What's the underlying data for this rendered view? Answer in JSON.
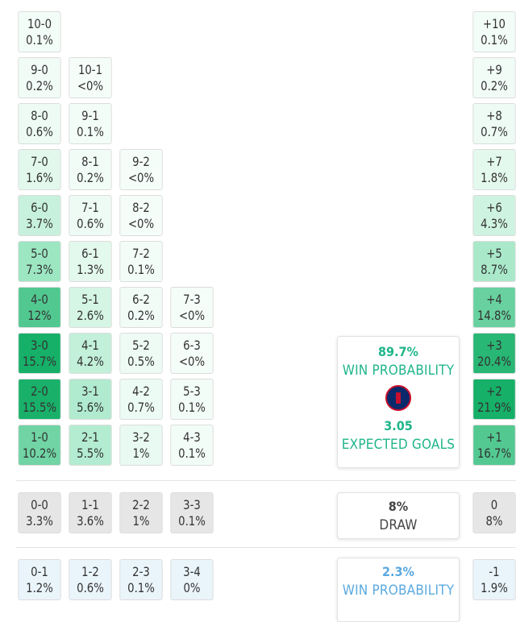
{
  "colors": {
    "win_accent": "#1fb58a",
    "loss_accent": "#5aa9e0",
    "draw_bg": "#e6e6e6"
  },
  "home_win_rows": [
    [
      {
        "score": "10-0",
        "prob": "0.1%",
        "shade": 0.01
      }
    ],
    [
      {
        "score": "9-0",
        "prob": "0.2%",
        "shade": 0.02
      },
      {
        "score": "10-1",
        "prob": "<0%",
        "shade": 0
      }
    ],
    [
      {
        "score": "8-0",
        "prob": "0.6%",
        "shade": 0.04
      },
      {
        "score": "9-1",
        "prob": "0.1%",
        "shade": 0.01
      }
    ],
    [
      {
        "score": "7-0",
        "prob": "1.6%",
        "shade": 0.1
      },
      {
        "score": "8-1",
        "prob": "0.2%",
        "shade": 0.02
      },
      {
        "score": "9-2",
        "prob": "<0%",
        "shade": 0
      }
    ],
    [
      {
        "score": "6-0",
        "prob": "3.7%",
        "shade": 0.24
      },
      {
        "score": "7-1",
        "prob": "0.6%",
        "shade": 0.04
      },
      {
        "score": "8-2",
        "prob": "<0%",
        "shade": 0
      }
    ],
    [
      {
        "score": "5-0",
        "prob": "7.3%",
        "shade": 0.47
      },
      {
        "score": "6-1",
        "prob": "1.3%",
        "shade": 0.09
      },
      {
        "score": "7-2",
        "prob": "0.1%",
        "shade": 0.01
      }
    ],
    [
      {
        "score": "4-0",
        "prob": "12%",
        "shade": 0.77
      },
      {
        "score": "5-1",
        "prob": "2.6%",
        "shade": 0.17
      },
      {
        "score": "6-2",
        "prob": "0.2%",
        "shade": 0.02
      },
      {
        "score": "7-3",
        "prob": "<0%",
        "shade": 0
      }
    ],
    [
      {
        "score": "3-0",
        "prob": "15.7%",
        "shade": 1.0
      },
      {
        "score": "4-1",
        "prob": "4.2%",
        "shade": 0.27
      },
      {
        "score": "5-2",
        "prob": "0.5%",
        "shade": 0.04
      },
      {
        "score": "6-3",
        "prob": "<0%",
        "shade": 0
      }
    ],
    [
      {
        "score": "2-0",
        "prob": "15.5%",
        "shade": 0.99
      },
      {
        "score": "3-1",
        "prob": "5.6%",
        "shade": 0.36
      },
      {
        "score": "4-2",
        "prob": "0.7%",
        "shade": 0.05
      },
      {
        "score": "5-3",
        "prob": "0.1%",
        "shade": 0.01
      }
    ],
    [
      {
        "score": "1-0",
        "prob": "10.2%",
        "shade": 0.65
      },
      {
        "score": "2-1",
        "prob": "5.5%",
        "shade": 0.35
      },
      {
        "score": "3-2",
        "prob": "1%",
        "shade": 0.07
      },
      {
        "score": "4-3",
        "prob": "0.1%",
        "shade": 0.01
      }
    ]
  ],
  "draw_row": [
    {
      "score": "0-0",
      "prob": "3.3%"
    },
    {
      "score": "1-1",
      "prob": "3.6%"
    },
    {
      "score": "2-2",
      "prob": "1%"
    },
    {
      "score": "3-3",
      "prob": "0.1%"
    }
  ],
  "loss_row": [
    {
      "score": "0-1",
      "prob": "1.2%"
    },
    {
      "score": "1-2",
      "prob": "0.6%"
    },
    {
      "score": "2-3",
      "prob": "0.1%"
    },
    {
      "score": "3-4",
      "prob": "0%"
    }
  ],
  "margins_win": [
    {
      "label": "+10",
      "prob": "0.1%",
      "shade": 0.01
    },
    {
      "label": "+9",
      "prob": "0.2%",
      "shade": 0.02
    },
    {
      "label": "+8",
      "prob": "0.7%",
      "shade": 0.04
    },
    {
      "label": "+7",
      "prob": "1.8%",
      "shade": 0.09
    },
    {
      "label": "+6",
      "prob": "4.3%",
      "shade": 0.2
    },
    {
      "label": "+5",
      "prob": "8.7%",
      "shade": 0.4
    },
    {
      "label": "+4",
      "prob": "14.8%",
      "shade": 0.68
    },
    {
      "label": "+3",
      "prob": "20.4%",
      "shade": 0.93
    },
    {
      "label": "+2",
      "prob": "21.9%",
      "shade": 1.0
    },
    {
      "label": "+1",
      "prob": "16.7%",
      "shade": 0.76
    }
  ],
  "margin_draw": {
    "label": "0",
    "prob": "8%"
  },
  "margin_loss": {
    "label": "-1",
    "prob": "1.9%"
  },
  "win_card": {
    "percent": "89.7%",
    "label": "WIN PROBABILITY",
    "crest_icon": "psg-crest-icon",
    "xg": "3.05",
    "xg_label": "EXPECTED GOALS"
  },
  "draw_card": {
    "percent": "8%",
    "label": "DRAW"
  },
  "loss_card": {
    "percent": "2.3%",
    "label": "WIN PROBABILITY"
  }
}
